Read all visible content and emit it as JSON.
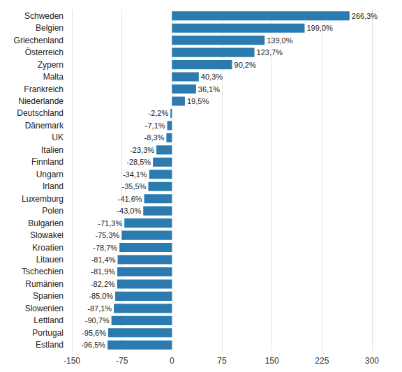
{
  "chart_data": {
    "type": "bar",
    "orientation": "horizontal",
    "categories": [
      "Schweden",
      "Belgien",
      "Griechenland",
      "Österreich",
      "Zypern",
      "Malta",
      "Frankreich",
      "Niederlande",
      "Deutschland",
      "Dänemark",
      "UK",
      "Italien",
      "Finnland",
      "Ungarn",
      "Irland",
      "Luxemburg",
      "Polen",
      "Bulgarien",
      "Slowakei",
      "Kroatien",
      "Litauen",
      "Tschechien",
      "Rumänien",
      "Spanien",
      "Slowenien",
      "Lettland",
      "Portugal",
      "Estland"
    ],
    "values": [
      266.3,
      199.0,
      139.0,
      123.7,
      90.2,
      40.3,
      36.1,
      19.5,
      -2.2,
      -7.1,
      -8.3,
      -23.3,
      -28.5,
      -34.1,
      -35.5,
      -41.6,
      -43.0,
      -71.3,
      -75.3,
      -78.7,
      -81.4,
      -81.9,
      -82.2,
      -85.0,
      -87.1,
      -90.7,
      -95.6,
      -96.5
    ],
    "value_labels": [
      "266,3%",
      "199,0%",
      "139,0%",
      "123,7%",
      "90,2%",
      "40,3%",
      "36,1%",
      "19,5%",
      "-2,2%",
      "-7,1%",
      "-8,3%",
      "-23,3%",
      "-28,5%",
      "-34,1%",
      "-35,5%",
      "-41,6%",
      "-43,0%",
      "-71,3%",
      "-75,3%",
      "-78,7%",
      "-81,4%",
      "-81,9%",
      "-82,2%",
      "-85,0%",
      "-87,1%",
      "-90,7%",
      "-95,6%",
      "-96,5%"
    ],
    "color": "#2b7bb1",
    "xlim": [
      -150,
      300
    ],
    "xticks": [
      -150,
      -75,
      0,
      75,
      150,
      225,
      300
    ],
    "grid": true,
    "data_labels": true
  }
}
